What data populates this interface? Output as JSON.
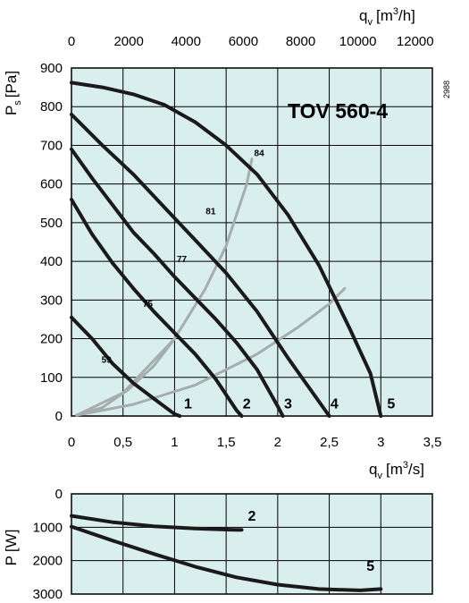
{
  "chart_data": [
    {
      "type": "line",
      "title": "TOV 560-4",
      "code": "2988",
      "xlabel": {
        "main": "q",
        "sub": "v",
        "unit": "[m",
        "sup": "3",
        "unit_end": "/s]"
      },
      "ylabel": {
        "main": "P",
        "sub": "s",
        "unit": "[Pa]"
      },
      "x2label": {
        "main": "q",
        "sub": "v",
        "unit": "[m",
        "sup": "3",
        "unit_end": "/h]"
      },
      "xlim": [
        0,
        3.5
      ],
      "ylim": [
        0,
        900
      ],
      "x2lim": [
        0,
        12600
      ],
      "xticks": [
        "0",
        "0,5",
        "1",
        "1,5",
        "2",
        "2,5",
        "3",
        "3,5"
      ],
      "yticks": [
        "0",
        "100",
        "200",
        "300",
        "400",
        "500",
        "600",
        "700",
        "800",
        "900"
      ],
      "x2ticks": [
        "0",
        "2000",
        "4000",
        "6000",
        "8000",
        "10000",
        "12000"
      ],
      "grid": true,
      "colors": {
        "background": "#d8efed",
        "curve": "#1a1a1a",
        "iso": "#a6adad"
      },
      "series": [
        {
          "name": "1",
          "x": [
            0,
            0.2,
            0.4,
            0.6,
            0.8,
            1.0,
            1.05
          ],
          "y": [
            255,
            200,
            135,
            85,
            45,
            5,
            0
          ]
        },
        {
          "name": "2",
          "x": [
            0,
            0.2,
            0.4,
            0.6,
            0.8,
            1.0,
            1.2,
            1.4,
            1.6,
            1.65
          ],
          "y": [
            560,
            470,
            395,
            330,
            270,
            215,
            160,
            95,
            15,
            0
          ]
        },
        {
          "name": "3",
          "x": [
            0,
            0.2,
            0.4,
            0.6,
            0.8,
            1.0,
            1.2,
            1.4,
            1.6,
            1.8,
            2.0,
            2.05
          ],
          "y": [
            690,
            615,
            545,
            475,
            420,
            360,
            305,
            250,
            190,
            120,
            25,
            0
          ]
        },
        {
          "name": "4",
          "x": [
            0,
            0.3,
            0.6,
            0.9,
            1.2,
            1.5,
            1.8,
            2.1,
            2.3,
            2.5
          ],
          "y": [
            780,
            700,
            625,
            540,
            455,
            370,
            270,
            150,
            75,
            0
          ]
        },
        {
          "name": "5",
          "x": [
            0,
            0.3,
            0.6,
            0.9,
            1.2,
            1.5,
            1.8,
            2.1,
            2.4,
            2.7,
            2.9,
            3.0
          ],
          "y": [
            862,
            850,
            832,
            805,
            760,
            700,
            625,
            520,
            390,
            225,
            110,
            0
          ]
        }
      ],
      "iso_lines": [
        {
          "label": "59",
          "x": [
            0.05,
            0.3,
            0.55,
            0.8,
            1.0
          ],
          "y": [
            2,
            22,
            68,
            130,
            200
          ]
        },
        {
          "label": "84",
          "x": [
            0.05,
            0.5,
            1.0,
            1.3,
            1.5,
            1.7,
            1.75
          ],
          "y": [
            2,
            60,
            200,
            330,
            440,
            600,
            665
          ]
        },
        {
          "label": "",
          "x": [
            0.05,
            0.6,
            1.2,
            1.8,
            2.2,
            2.5,
            2.65
          ],
          "y": [
            2,
            30,
            80,
            160,
            230,
            290,
            330
          ]
        }
      ],
      "labels": [
        {
          "text": "84",
          "x": 1.82,
          "y": 672
        },
        {
          "text": "81",
          "x": 1.35,
          "y": 522
        },
        {
          "text": "77",
          "x": 1.07,
          "y": 398
        },
        {
          "text": "75",
          "x": 0.74,
          "y": 282
        },
        {
          "text": "59",
          "x": 0.34,
          "y": 138
        }
      ],
      "curve_numbers": [
        {
          "text": "1",
          "x": 1.13,
          "y": 20
        },
        {
          "text": "2",
          "x": 1.7,
          "y": 20
        },
        {
          "text": "3",
          "x": 2.1,
          "y": 20
        },
        {
          "text": "4",
          "x": 2.55,
          "y": 20
        },
        {
          "text": "5",
          "x": 3.1,
          "y": 20
        }
      ]
    },
    {
      "type": "line",
      "ylabel": {
        "main": "P",
        "unit": "[W]"
      },
      "ylim": [
        0,
        3000
      ],
      "yticks": [
        "0",
        "1000",
        "2000",
        "3000"
      ],
      "xlim": [
        0,
        3.5
      ],
      "grid": true,
      "series": [
        {
          "name": "2",
          "x": [
            0,
            0.4,
            0.8,
            1.2,
            1.6,
            1.65
          ],
          "y": [
            660,
            850,
            970,
            1040,
            1080,
            1080
          ]
        },
        {
          "name": "5",
          "x": [
            0,
            0.4,
            0.8,
            1.2,
            1.6,
            2.0,
            2.4,
            2.8,
            3.0
          ],
          "y": [
            980,
            1400,
            1800,
            2180,
            2500,
            2720,
            2850,
            2890,
            2850
          ]
        }
      ],
      "curve_numbers": [
        {
          "text": "2",
          "x": 1.75,
          "y": 800
        },
        {
          "text": "5",
          "x": 2.9,
          "y": 2300
        }
      ]
    }
  ]
}
